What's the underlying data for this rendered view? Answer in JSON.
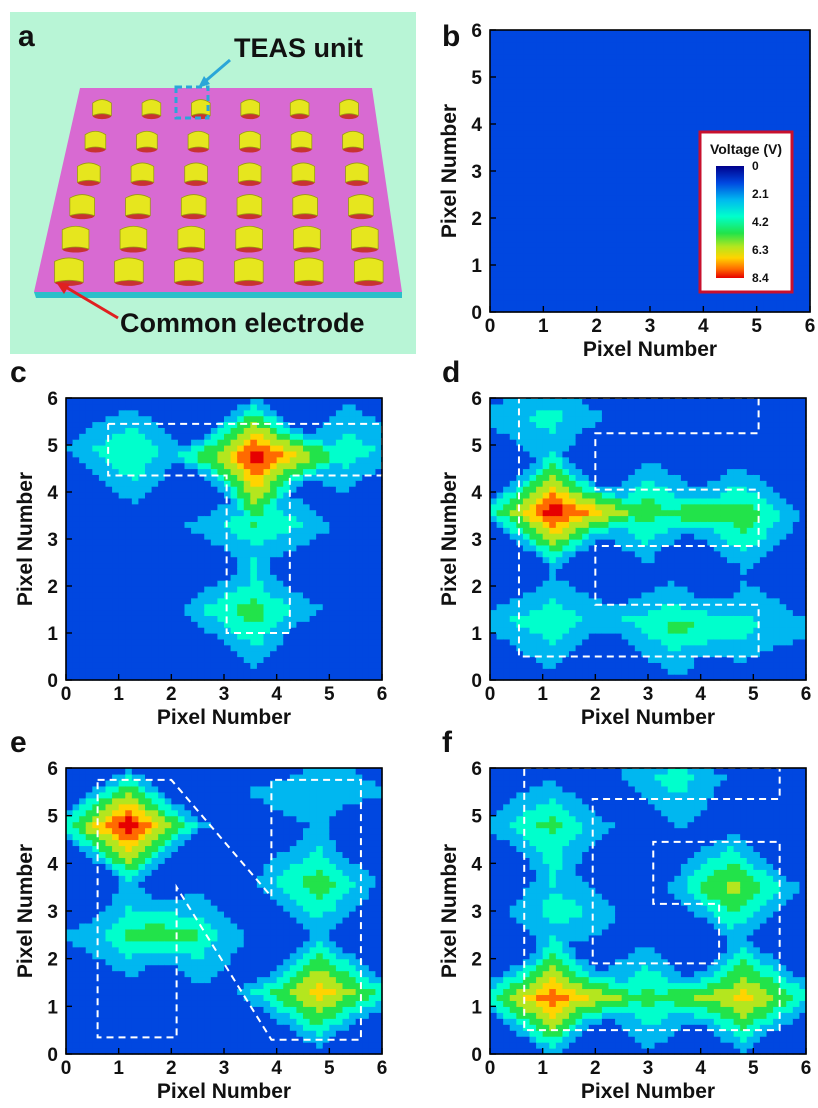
{
  "colors": {
    "panel_a_background": "#b8f5d6",
    "plate": "#d86ad2",
    "plate_edge": "#2bbfc9",
    "pad": "#e6e61e",
    "teas_marker": "#2aa6d8",
    "legend_border": "#c8102e",
    "outline": "#ffffff",
    "colormap": [
      "#00008b",
      "#0047e0",
      "#00b7f0",
      "#00ffcc",
      "#22e34a",
      "#b4e61e",
      "#ffd400",
      "#ff6a00",
      "#e60000"
    ]
  },
  "panel_a": {
    "letter": "a",
    "teas_label": "TEAS unit",
    "electrode_label": "Common electrode",
    "array_rows": 6,
    "array_cols": 6
  },
  "legend": {
    "title": "Voltage (V)",
    "ticks": [
      "0",
      "2.1",
      "4.2",
      "6.3",
      "8.4"
    ]
  },
  "chart_data": [
    {
      "type": "heatmap",
      "panel": "b",
      "x_ticks": [
        "0",
        "1",
        "2",
        "3",
        "4",
        "5",
        "6"
      ],
      "y_ticks": [
        "0",
        "1",
        "2",
        "3",
        "4",
        "5",
        "6"
      ],
      "xlabel": "Pixel Number",
      "ylabel": "Pixel Number",
      "xlim": [
        0,
        6
      ],
      "ylim": [
        0,
        6
      ],
      "z_range": [
        0,
        8.4
      ],
      "peaks": [],
      "outline_letter": ""
    },
    {
      "type": "heatmap",
      "panel": "c",
      "x_ticks": [
        "0",
        "1",
        "2",
        "3",
        "4",
        "5",
        "6"
      ],
      "y_ticks": [
        "0",
        "1",
        "2",
        "3",
        "4",
        "5",
        "6"
      ],
      "xlabel": "Pixel Number",
      "ylabel": "Pixel Number",
      "xlim": [
        0,
        6
      ],
      "ylim": [
        0,
        6
      ],
      "z_range": [
        0,
        8.4
      ],
      "peaks": [
        {
          "x": 3.6,
          "y": 4.75,
          "v": 8.4
        },
        {
          "x": 1.3,
          "y": 4.9,
          "v": 4.0
        },
        {
          "x": 5.3,
          "y": 4.9,
          "v": 4.0
        },
        {
          "x": 3.6,
          "y": 3.3,
          "v": 4.3
        },
        {
          "x": 3.6,
          "y": 1.5,
          "v": 4.6
        }
      ],
      "outline_letter": "T"
    },
    {
      "type": "heatmap",
      "panel": "d",
      "x_ticks": [
        "0",
        "1",
        "2",
        "3",
        "4",
        "5",
        "6"
      ],
      "y_ticks": [
        "0",
        "1",
        "2",
        "3",
        "4",
        "5",
        "6"
      ],
      "xlabel": "Pixel Number",
      "ylabel": "Pixel Number",
      "xlim": [
        0,
        6
      ],
      "ylim": [
        0,
        6
      ],
      "z_range": [
        0,
        8.4
      ],
      "peaks": [
        {
          "x": 1.2,
          "y": 3.6,
          "v": 8.4
        },
        {
          "x": 3.0,
          "y": 3.6,
          "v": 5.0
        },
        {
          "x": 4.8,
          "y": 3.5,
          "v": 4.5
        },
        {
          "x": 1.2,
          "y": 5.6,
          "v": 3.6
        },
        {
          "x": 1.2,
          "y": 1.3,
          "v": 4.2
        },
        {
          "x": 3.5,
          "y": 1.2,
          "v": 3.9
        },
        {
          "x": 4.8,
          "y": 1.1,
          "v": 3.6
        }
      ],
      "outline_letter": "E"
    },
    {
      "type": "heatmap",
      "panel": "e",
      "x_ticks": [
        "0",
        "1",
        "2",
        "3",
        "4",
        "5",
        "6"
      ],
      "y_ticks": [
        "0",
        "1",
        "2",
        "3",
        "4",
        "5",
        "6"
      ],
      "xlabel": "Pixel Number",
      "ylabel": "Pixel Number",
      "xlim": [
        0,
        6
      ],
      "ylim": [
        0,
        6
      ],
      "z_range": [
        0,
        8.4
      ],
      "peaks": [
        {
          "x": 1.2,
          "y": 4.8,
          "v": 8.4
        },
        {
          "x": 1.2,
          "y": 2.5,
          "v": 4.2
        },
        {
          "x": 2.5,
          "y": 2.5,
          "v": 3.6
        },
        {
          "x": 4.8,
          "y": 1.3,
          "v": 7.0
        },
        {
          "x": 4.8,
          "y": 3.6,
          "v": 4.4
        },
        {
          "x": 4.8,
          "y": 5.5,
          "v": 3.4
        }
      ],
      "outline_letter": "N"
    },
    {
      "type": "heatmap",
      "panel": "f",
      "x_ticks": [
        "0",
        "1",
        "2",
        "3",
        "4",
        "5",
        "6"
      ],
      "y_ticks": [
        "0",
        "1",
        "2",
        "3",
        "4",
        "5",
        "6"
      ],
      "xlabel": "Pixel Number",
      "ylabel": "Pixel Number",
      "xlim": [
        0,
        6
      ],
      "ylim": [
        0,
        6
      ],
      "z_range": [
        0,
        8.4
      ],
      "peaks": [
        {
          "x": 1.2,
          "y": 1.2,
          "v": 8.0
        },
        {
          "x": 4.8,
          "y": 1.2,
          "v": 6.8
        },
        {
          "x": 3.0,
          "y": 1.2,
          "v": 4.2
        },
        {
          "x": 4.6,
          "y": 3.5,
          "v": 5.2
        },
        {
          "x": 1.2,
          "y": 4.8,
          "v": 4.2
        },
        {
          "x": 1.2,
          "y": 3.0,
          "v": 3.6
        },
        {
          "x": 3.6,
          "y": 5.8,
          "v": 3.4
        }
      ],
      "outline_letter": "G"
    }
  ]
}
